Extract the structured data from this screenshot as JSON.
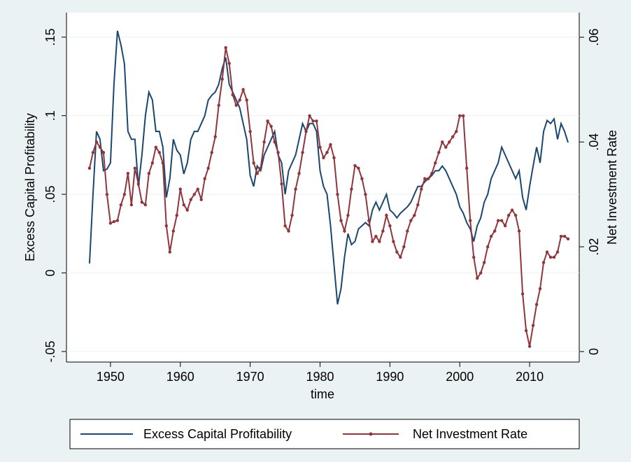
{
  "chart_data": {
    "type": "line",
    "x_label": "time",
    "y_label": "Excess Capital Profitability",
    "y2_label": "Net Investment Rate",
    "x": [
      1947,
      1947.5,
      1948,
      1948.5,
      1949,
      1949.5,
      1950,
      1950.5,
      1951,
      1951.5,
      1952,
      1952.5,
      1953,
      1953.5,
      1954,
      1954.5,
      1955,
      1955.5,
      1956,
      1956.5,
      1957,
      1957.5,
      1958,
      1958.5,
      1959,
      1959.5,
      1960,
      1960.5,
      1961,
      1961.5,
      1962,
      1962.5,
      1963,
      1963.5,
      1964,
      1964.5,
      1965,
      1965.5,
      1966,
      1966.5,
      1967,
      1967.5,
      1968,
      1968.5,
      1969,
      1969.5,
      1970,
      1970.5,
      1971,
      1971.5,
      1972,
      1972.5,
      1973,
      1973.5,
      1974,
      1974.5,
      1975,
      1975.5,
      1976,
      1976.5,
      1977,
      1977.5,
      1978,
      1978.5,
      1979,
      1979.5,
      1980,
      1980.5,
      1981,
      1981.5,
      1982,
      1982.5,
      1983,
      1983.5,
      1984,
      1984.5,
      1985,
      1985.5,
      1986,
      1986.5,
      1987,
      1987.5,
      1988,
      1988.5,
      1989,
      1989.5,
      1990,
      1990.5,
      1991,
      1991.5,
      1992,
      1992.5,
      1993,
      1993.5,
      1994,
      1994.5,
      1995,
      1995.5,
      1996,
      1996.5,
      1997,
      1997.5,
      1998,
      1998.5,
      1999,
      1999.5,
      2000,
      2000.5,
      2001,
      2001.5,
      2002,
      2002.5,
      2003,
      2003.5,
      2004,
      2004.5,
      2005,
      2005.5,
      2006,
      2006.5,
      2007,
      2007.5,
      2008,
      2008.5,
      2009,
      2009.5,
      2010,
      2010.5,
      2011,
      2011.5,
      2012,
      2012.5,
      2013,
      2013.5,
      2014,
      2014.5,
      2015,
      2015.5
    ],
    "series": [
      {
        "name": "Excess Capital Profitability",
        "color": "#1a476f",
        "axis": "y",
        "markers": false,
        "values": [
          0.006,
          0.05,
          0.09,
          0.085,
          0.065,
          0.066,
          0.07,
          0.12,
          0.154,
          0.145,
          0.133,
          0.09,
          0.085,
          0.085,
          0.055,
          0.075,
          0.1,
          0.115,
          0.11,
          0.09,
          0.09,
          0.08,
          0.048,
          0.06,
          0.085,
          0.078,
          0.075,
          0.063,
          0.07,
          0.085,
          0.09,
          0.09,
          0.095,
          0.1,
          0.11,
          0.113,
          0.115,
          0.12,
          0.13,
          0.137,
          0.12,
          0.115,
          0.11,
          0.105,
          0.095,
          0.085,
          0.062,
          0.055,
          0.068,
          0.065,
          0.075,
          0.08,
          0.085,
          0.09,
          0.075,
          0.07,
          0.05,
          0.065,
          0.07,
          0.075,
          0.085,
          0.095,
          0.09,
          0.095,
          0.095,
          0.09,
          0.065,
          0.055,
          0.05,
          0.03,
          0.005,
          -0.02,
          -0.01,
          0.01,
          0.025,
          0.018,
          0.02,
          0.028,
          0.03,
          0.032,
          0.03,
          0.04,
          0.045,
          0.04,
          0.045,
          0.05,
          0.04,
          0.038,
          0.035,
          0.038,
          0.04,
          0.042,
          0.045,
          0.05,
          0.055,
          0.055,
          0.058,
          0.06,
          0.062,
          0.065,
          0.065,
          0.068,
          0.065,
          0.06,
          0.055,
          0.05,
          0.042,
          0.038,
          0.032,
          0.028,
          0.02,
          0.03,
          0.035,
          0.045,
          0.05,
          0.06,
          0.065,
          0.07,
          0.08,
          0.075,
          0.07,
          0.065,
          0.06,
          0.065,
          0.048,
          0.04,
          0.055,
          0.068,
          0.08,
          0.07,
          0.09,
          0.097,
          0.095,
          0.098,
          0.085,
          0.095,
          0.09,
          0.083
        ]
      },
      {
        "name": "Net Investment Rate",
        "color": "#90353b",
        "axis": "y2",
        "markers": true,
        "values": [
          0.035,
          0.038,
          0.04,
          0.039,
          0.038,
          0.03,
          0.0245,
          0.0248,
          0.025,
          0.028,
          0.03,
          0.034,
          0.028,
          0.035,
          0.032,
          0.0285,
          0.028,
          0.034,
          0.036,
          0.039,
          0.038,
          0.036,
          0.024,
          0.019,
          0.023,
          0.026,
          0.031,
          0.028,
          0.027,
          0.029,
          0.03,
          0.031,
          0.029,
          0.033,
          0.035,
          0.038,
          0.041,
          0.047,
          0.052,
          0.058,
          0.055,
          0.049,
          0.047,
          0.048,
          0.05,
          0.048,
          0.042,
          0.036,
          0.034,
          0.035,
          0.04,
          0.044,
          0.043,
          0.04,
          0.038,
          0.032,
          0.024,
          0.023,
          0.026,
          0.031,
          0.034,
          0.038,
          0.042,
          0.045,
          0.044,
          0.044,
          0.039,
          0.037,
          0.038,
          0.0395,
          0.037,
          0.03,
          0.025,
          0.023,
          0.026,
          0.031,
          0.0355,
          0.035,
          0.033,
          0.03,
          0.025,
          0.021,
          0.022,
          0.021,
          0.023,
          0.026,
          0.024,
          0.021,
          0.019,
          0.018,
          0.02,
          0.023,
          0.025,
          0.026,
          0.028,
          0.031,
          0.033,
          0.033,
          0.034,
          0.036,
          0.038,
          0.04,
          0.039,
          0.04,
          0.041,
          0.042,
          0.045,
          0.045,
          0.035,
          0.025,
          0.018,
          0.014,
          0.015,
          0.017,
          0.02,
          0.022,
          0.023,
          0.025,
          0.025,
          0.024,
          0.026,
          0.027,
          0.026,
          0.023,
          0.011,
          0.004,
          0.001,
          0.005,
          0.009,
          0.012,
          0.017,
          0.019,
          0.018,
          0.018,
          0.019,
          0.022,
          0.022,
          0.0215
        ]
      }
    ],
    "xlim": [
      1943.7,
      2017.1
    ],
    "xticks": [
      1950,
      1960,
      1970,
      1980,
      1990,
      2000,
      2010
    ],
    "ylim": [
      -0.0567,
      0.1656
    ],
    "yticks": [
      {
        "value": -0.05,
        "label": "-.05"
      },
      0,
      {
        "value": 0.05,
        "label": ".05"
      },
      {
        "value": 0.1,
        "label": ".1"
      },
      {
        "value": 0.15,
        "label": ".15"
      }
    ],
    "y2lim": [
      -0.002,
      0.0647
    ],
    "y2ticks": [
      0,
      {
        "value": 0.02,
        "label": ".02"
      },
      {
        "value": 0.04,
        "label": ".04"
      },
      {
        "value": 0.06,
        "label": ".06"
      }
    ],
    "grid": true,
    "legend": "bottom"
  }
}
